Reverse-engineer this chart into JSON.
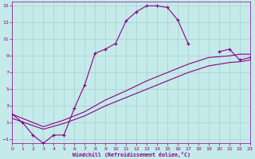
{
  "xlabel": "Windchill (Refroidissement éolien,°C)",
  "bg_color": "#c5eaea",
  "grid_color": "#a8d0d0",
  "line_color": "#880088",
  "xlim": [
    0,
    23
  ],
  "ylim": [
    -1.5,
    15.5
  ],
  "xticks": [
    0,
    1,
    2,
    3,
    4,
    5,
    6,
    7,
    8,
    9,
    10,
    11,
    12,
    13,
    14,
    15,
    16,
    17,
    18,
    19,
    20,
    21,
    22,
    23
  ],
  "yticks": [
    -1,
    1,
    3,
    5,
    7,
    9,
    11,
    13,
    15
  ],
  "curve_x": [
    0,
    1,
    2,
    3,
    4,
    5,
    6,
    7,
    8,
    9,
    10,
    11,
    12,
    13,
    14,
    15,
    16,
    17,
    20,
    21,
    22,
    23
  ],
  "curve_y": [
    2.0,
    1.0,
    -0.5,
    -1.5,
    -0.5,
    -0.5,
    2.7,
    5.5,
    9.3,
    9.8,
    10.5,
    13.2,
    14.3,
    15.0,
    15.0,
    14.8,
    13.3,
    10.5,
    9.5,
    9.8,
    8.5,
    8.8
  ],
  "seg1_break_after_idx": 17,
  "diag1_x": [
    0,
    3,
    5,
    7,
    9,
    11,
    13,
    15,
    17,
    19,
    21,
    22,
    23
  ],
  "diag1_y": [
    2.0,
    0.5,
    1.3,
    2.3,
    3.7,
    4.8,
    6.0,
    7.0,
    8.0,
    8.8,
    9.0,
    9.2,
    9.2
  ],
  "diag2_x": [
    0,
    3,
    5,
    7,
    9,
    11,
    13,
    15,
    17,
    19,
    21,
    22,
    23
  ],
  "diag2_y": [
    1.5,
    0.2,
    0.9,
    1.8,
    3.0,
    4.0,
    5.0,
    6.0,
    7.0,
    7.8,
    8.2,
    8.3,
    8.5
  ]
}
